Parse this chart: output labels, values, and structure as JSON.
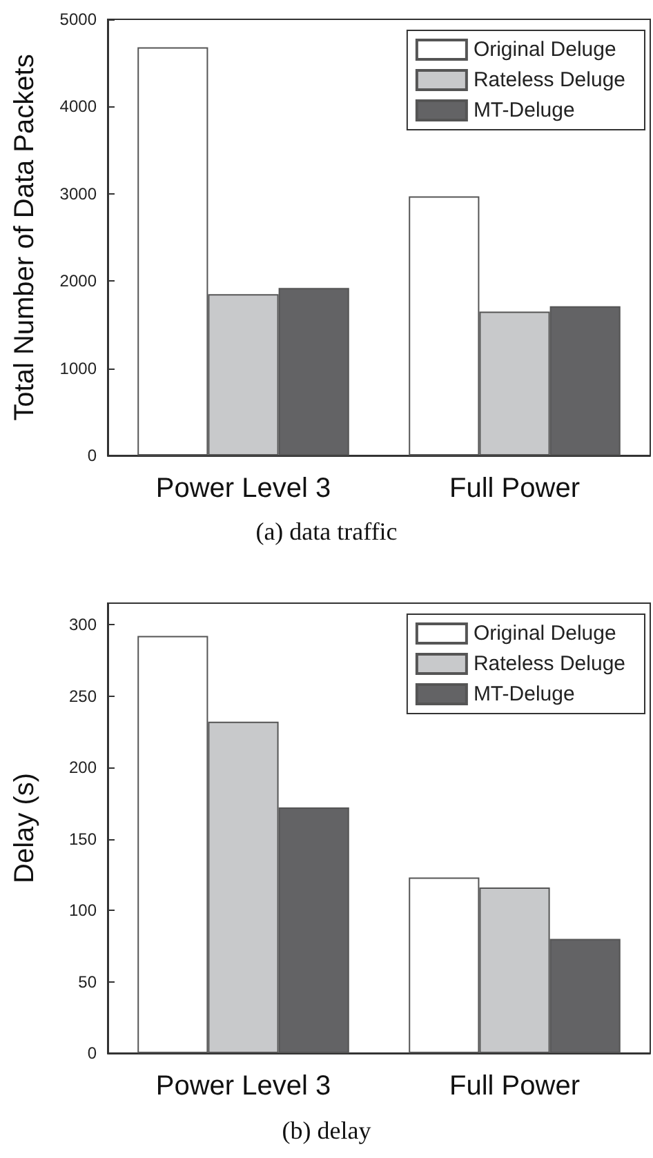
{
  "chart_data": [
    {
      "type": "bar",
      "title": "(a) data traffic",
      "ylabel": "Total Number of Data Packets",
      "categories": [
        "Power Level 3",
        "Full Power"
      ],
      "series": [
        {
          "name": "Original Deluge",
          "color": "#ffffff",
          "values": [
            4680,
            2970
          ]
        },
        {
          "name": "Rateless Deluge",
          "color": "#c8c9cb",
          "values": [
            1850,
            1650
          ]
        },
        {
          "name": "MT-Deluge",
          "color": "#636365",
          "values": [
            1920,
            1710
          ]
        }
      ],
      "ylim": [
        0,
        5000
      ],
      "yticks": [
        0,
        1000,
        2000,
        3000,
        4000,
        5000
      ],
      "grid": false,
      "legend": "top right"
    },
    {
      "type": "bar",
      "title": "(b) delay",
      "ylabel": "Delay (s)",
      "categories": [
        "Power Level 3",
        "Full Power"
      ],
      "series": [
        {
          "name": "Original Deluge",
          "color": "#ffffff",
          "values": [
            292,
            123
          ]
        },
        {
          "name": "Rateless Deluge",
          "color": "#c8c9cb",
          "values": [
            232,
            116
          ]
        },
        {
          "name": "MT-Deluge",
          "color": "#636365",
          "values": [
            172,
            80
          ]
        }
      ],
      "ylim": [
        0,
        315
      ],
      "yticks": [
        0,
        50,
        100,
        150,
        200,
        250,
        300
      ],
      "grid": false,
      "legend": "top right"
    }
  ]
}
